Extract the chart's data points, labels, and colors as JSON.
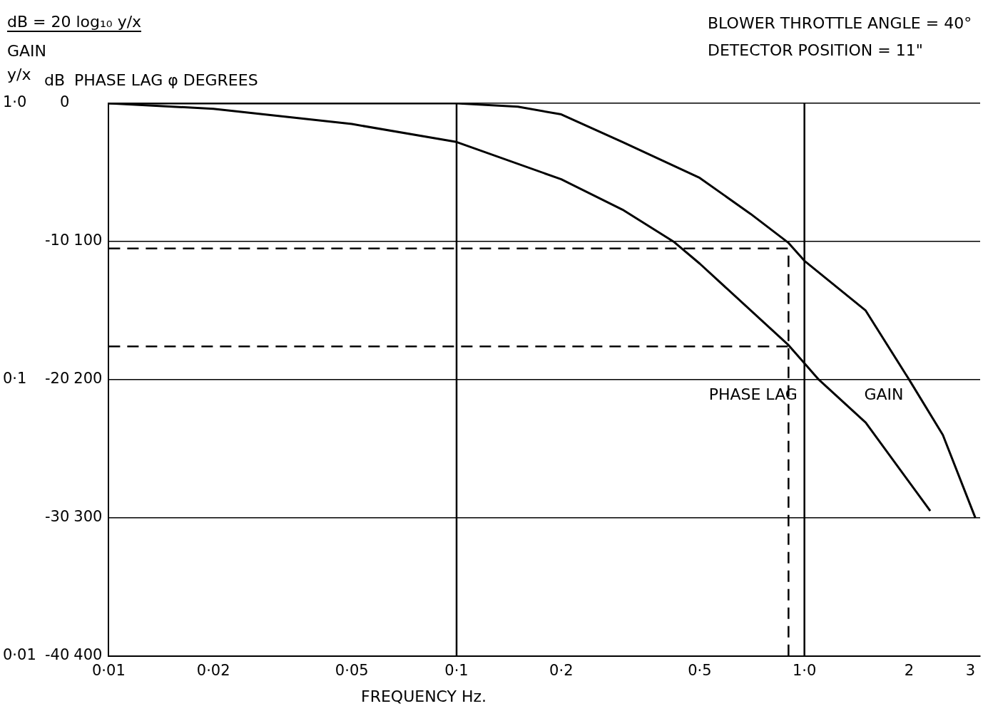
{
  "chart_data": {
    "type": "line",
    "annotations": [
      "dB = 20 log₁₀ y/x",
      "BLOWER THROTTLE ANGLE = 40°",
      "DETECTOR POSITION = 11\"",
      "1·0",
      "0·1",
      "0·01"
    ],
    "xlabel": "FREQUENCY  Hz.",
    "ylabel": "dB",
    "y2label": "PHASE LAG φ DEGREES",
    "y3label": "GAIN y/x",
    "series": [
      {
        "name": "GAIN",
        "color": "#000000",
        "x": [
          0.01,
          0.05,
          0.1,
          0.15,
          0.2,
          0.3,
          0.5,
          0.7,
          0.9,
          1.0,
          1.5,
          2.0,
          2.5,
          3.1
        ],
        "values": [
          0,
          0,
          0,
          -0.25,
          -0.8,
          -2.8,
          -5.4,
          -8,
          -10.1,
          -11.4,
          -15,
          -20,
          -24,
          -30
        ]
      },
      {
        "name": "PHASE LAG",
        "color": "#000000",
        "axis": "y2",
        "x": [
          0.01,
          0.02,
          0.05,
          0.1,
          0.2,
          0.3,
          0.42,
          0.5,
          0.9,
          1.1,
          1.5,
          2.3
        ],
        "values": [
          0,
          4,
          15,
          28,
          55,
          77,
          100,
          116,
          175,
          200,
          231,
          295
        ]
      }
    ],
    "xlim": [
      0.01,
      3.2
    ],
    "xticks": [
      {
        "value": 0.01,
        "label": "0·01"
      },
      {
        "value": 0.02,
        "label": "0·02"
      },
      {
        "value": 0.05,
        "label": "0·05"
      },
      {
        "value": 0.1,
        "label": "0·1"
      },
      {
        "value": 0.2,
        "label": "0·2"
      },
      {
        "value": 0.5,
        "label": "0·5"
      },
      {
        "value": 1,
        "label": "1·0"
      },
      2,
      3
    ],
    "ylim": [
      -40,
      0
    ],
    "yticks": [
      0,
      -10,
      -20,
      -30,
      -40
    ],
    "y2lim": [
      400,
      0
    ],
    "y2ticks": [
      100,
      200,
      300,
      400
    ],
    "log": "x",
    "grid": "y",
    "legend": false,
    "line_style": "solid",
    "marker": "none",
    "ref_lines": [
      {
        "axis": "x",
        "value": 0.1,
        "line_style": "solid"
      },
      {
        "axis": "x",
        "value": 1,
        "line_style": "solid"
      },
      {
        "axis": "y",
        "value": -10.5,
        "line_style": "dashed"
      },
      {
        "axis": "y2",
        "value": 176,
        "line_style": "dashed"
      },
      {
        "axis": "x",
        "value": 0.9,
        "line_style": "dashed"
      }
    ]
  }
}
